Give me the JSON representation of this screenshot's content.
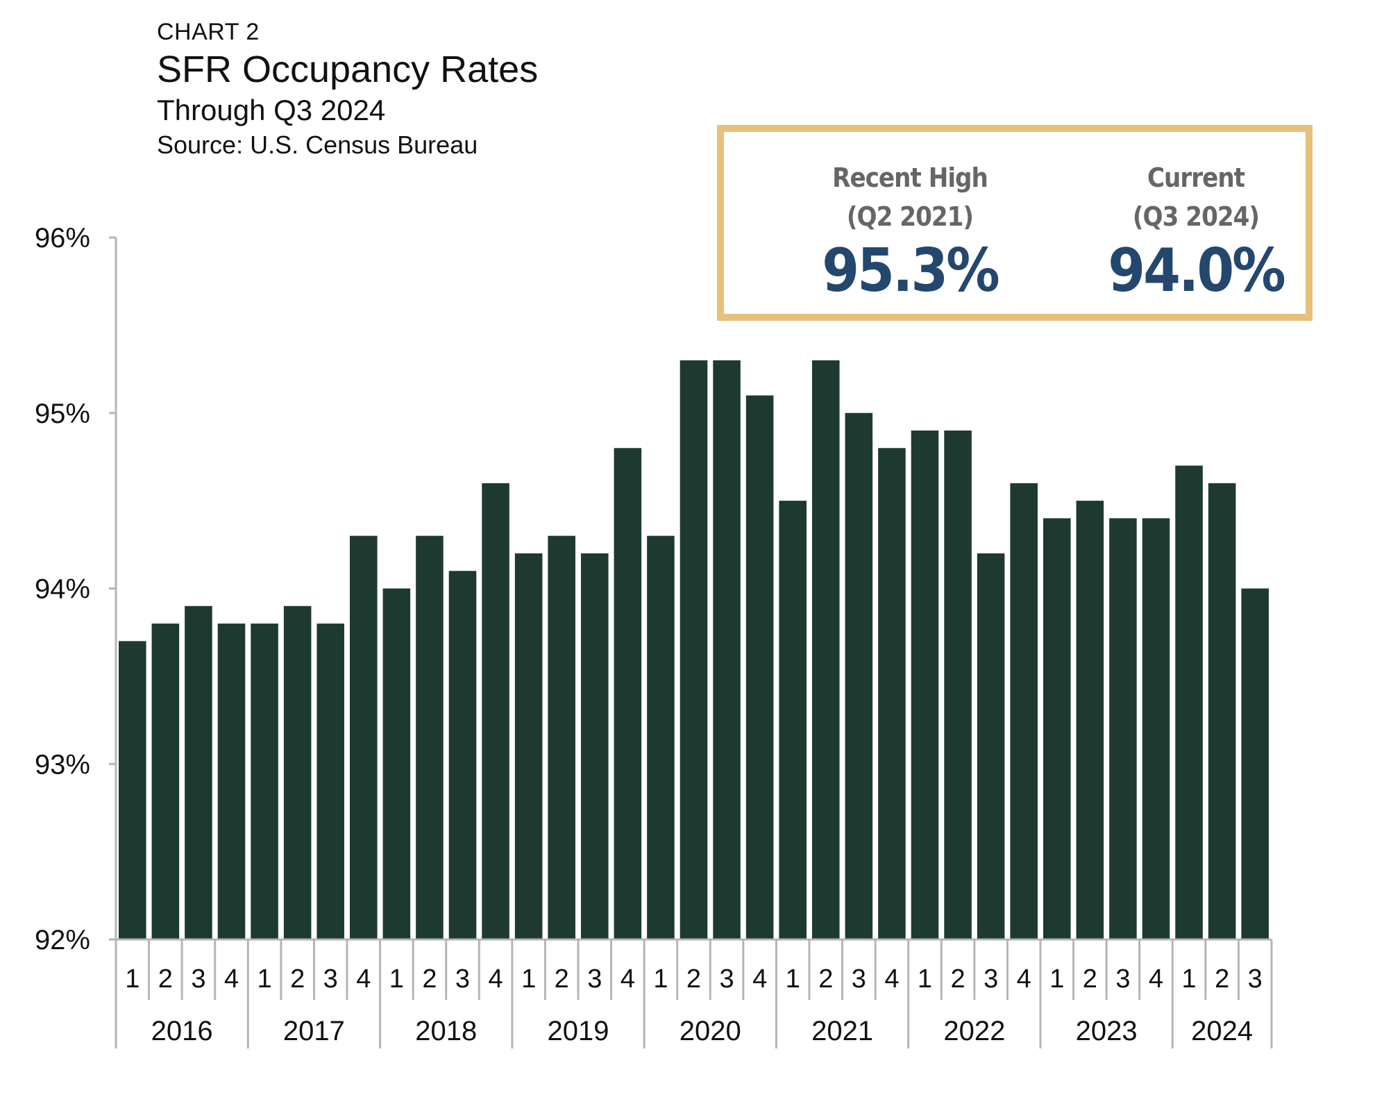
{
  "header": {
    "chart_label": "CHART 2",
    "title": "SFR Occupancy Rates",
    "subtitle": "Through Q3 2024",
    "source": "Source: U.S. Census Bureau"
  },
  "callout": {
    "recent_high": {
      "label_line1": "Recent High",
      "label_line2": "(Q2 2021)",
      "value": "95.3%"
    },
    "current": {
      "label_line1": "Current",
      "label_line2": "(Q3 2024)",
      "value": "94.0%"
    },
    "border_color": "#e8c07a",
    "value_color": "#24476e"
  },
  "chart_data": {
    "type": "bar",
    "bar_color": "#1e3a30",
    "ylim": [
      92,
      96
    ],
    "yticks": [
      92,
      93,
      94,
      95,
      96
    ],
    "ytick_labels": [
      "92%",
      "93%",
      "94%",
      "95%",
      "96%"
    ],
    "year_groups": [
      {
        "year": "2016",
        "quarters": [
          "1",
          "2",
          "3",
          "4"
        ]
      },
      {
        "year": "2017",
        "quarters": [
          "1",
          "2",
          "3",
          "4"
        ]
      },
      {
        "year": "2018",
        "quarters": [
          "1",
          "2",
          "3",
          "4"
        ]
      },
      {
        "year": "2019",
        "quarters": [
          "1",
          "2",
          "3",
          "4"
        ]
      },
      {
        "year": "2020",
        "quarters": [
          "1",
          "2",
          "3",
          "4"
        ]
      },
      {
        "year": "2021",
        "quarters": [
          "1",
          "2",
          "3",
          "4"
        ]
      },
      {
        "year": "2022",
        "quarters": [
          "1",
          "2",
          "3",
          "4"
        ]
      },
      {
        "year": "2023",
        "quarters": [
          "1",
          "2",
          "3",
          "4"
        ]
      },
      {
        "year": "2024",
        "quarters": [
          "1",
          "2",
          "3"
        ]
      }
    ],
    "values": [
      93.7,
      93.8,
      93.9,
      93.8,
      93.8,
      93.9,
      93.8,
      94.3,
      94.0,
      94.3,
      94.1,
      94.6,
      94.2,
      94.3,
      94.2,
      94.8,
      94.3,
      95.3,
      95.3,
      95.1,
      94.5,
      95.3,
      95.0,
      94.8,
      94.9,
      94.9,
      94.2,
      94.6,
      94.4,
      94.5,
      94.4,
      94.4,
      94.7,
      94.6,
      94.0
    ]
  }
}
